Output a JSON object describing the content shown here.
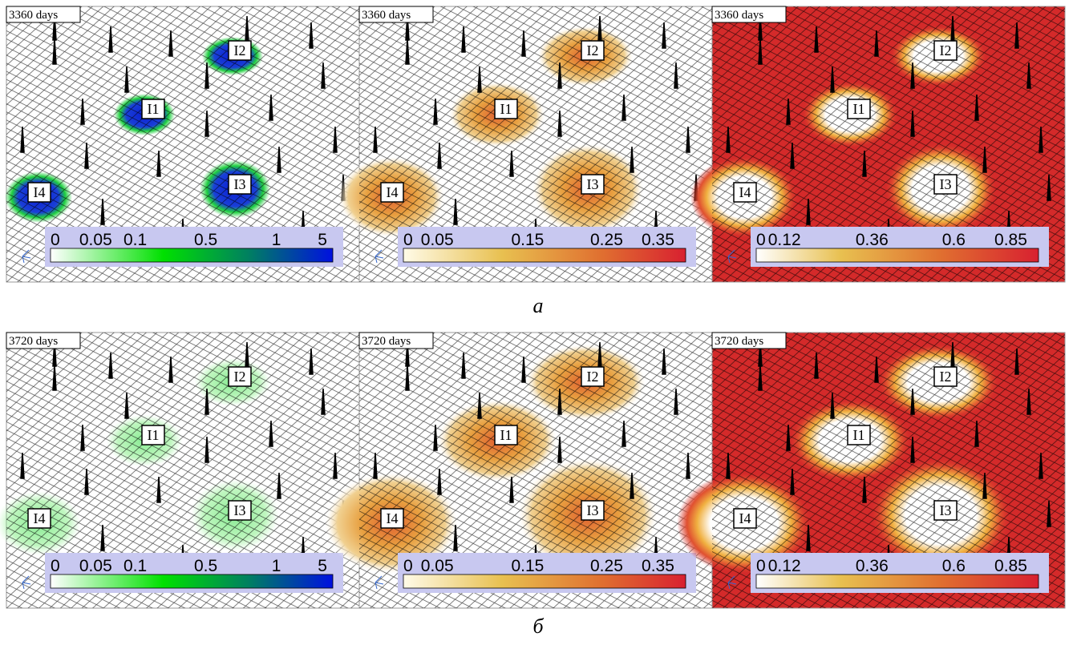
{
  "figure": {
    "rows": [
      {
        "label": "а",
        "panels": [
          {
            "time": "3360 days",
            "wells": [
              "I1",
              "I2",
              "I3",
              "I4"
            ],
            "colorbar": [
              "0",
              "0.05",
              "0.1",
              "0.5",
              "1",
              "5"
            ]
          },
          {
            "time": "3360 days",
            "wells": [
              "I1",
              "I2",
              "I3",
              "I4"
            ],
            "colorbar": [
              "0",
              "0.05",
              "0.15",
              "0.25",
              "0.35"
            ]
          },
          {
            "time": "3360 days",
            "wells": [
              "I1",
              "I2",
              "I3",
              "I4"
            ],
            "colorbar": [
              "0",
              "0.12",
              "0.36",
              "0.6",
              "0.85"
            ]
          }
        ]
      },
      {
        "label": "б",
        "panels": [
          {
            "time": "3720 days",
            "wells": [
              "I1",
              "I2",
              "I3",
              "I4"
            ],
            "colorbar": [
              "0",
              "0.05",
              "0.1",
              "0.5",
              "1",
              "5"
            ]
          },
          {
            "time": "3720 days",
            "wells": [
              "I1",
              "I2",
              "I3",
              "I4"
            ],
            "colorbar": [
              "0",
              "0.05",
              "0.15",
              "0.25",
              "0.35"
            ]
          },
          {
            "time": "3720 days",
            "wells": [
              "I1",
              "I2",
              "I3",
              "I4"
            ],
            "colorbar": [
              "0",
              "0.12",
              "0.36",
              "0.6",
              "0.85"
            ]
          }
        ]
      }
    ]
  }
}
